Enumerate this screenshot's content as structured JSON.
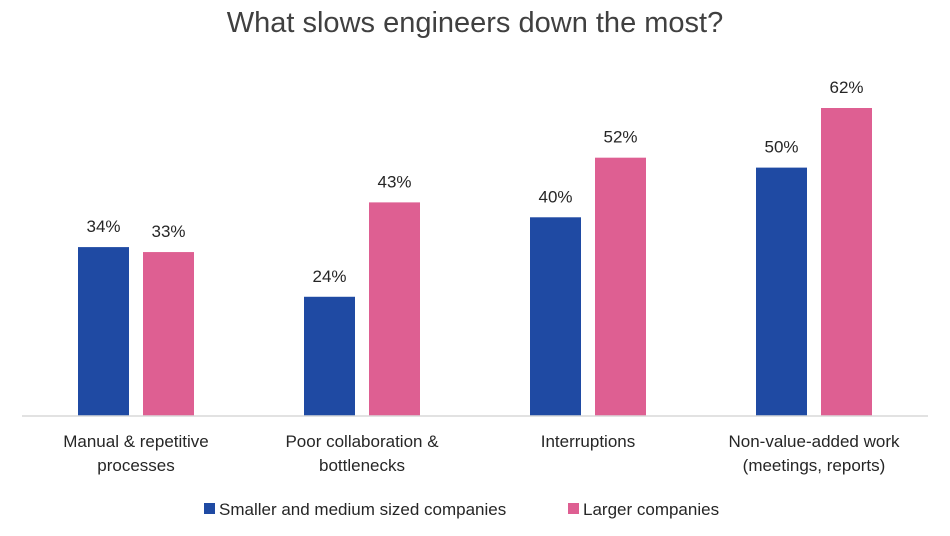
{
  "chart_data": {
    "type": "bar",
    "title": "What slows engineers down the most?",
    "categories": [
      [
        "Manual & repetitive",
        "processes"
      ],
      [
        "Poor collaboration &",
        "bottlenecks"
      ],
      [
        "Interruptions"
      ],
      [
        "Non-value-added work",
        "(meetings, reports)"
      ]
    ],
    "series": [
      {
        "name": "Smaller and medium sized companies",
        "values": [
          34,
          24,
          40,
          50
        ],
        "labels": [
          "34%",
          "24%",
          "40%",
          "50%"
        ],
        "color": "#1f4aa3"
      },
      {
        "name": "Larger companies",
        "values": [
          33,
          43,
          52,
          62
        ],
        "labels": [
          "33%",
          "43%",
          "52%",
          "62%"
        ],
        "color": "#de5f92"
      }
    ],
    "ylim": [
      0,
      62
    ],
    "grid": false,
    "legend_position": "bottom",
    "axis_color": "#d9d9d9"
  }
}
